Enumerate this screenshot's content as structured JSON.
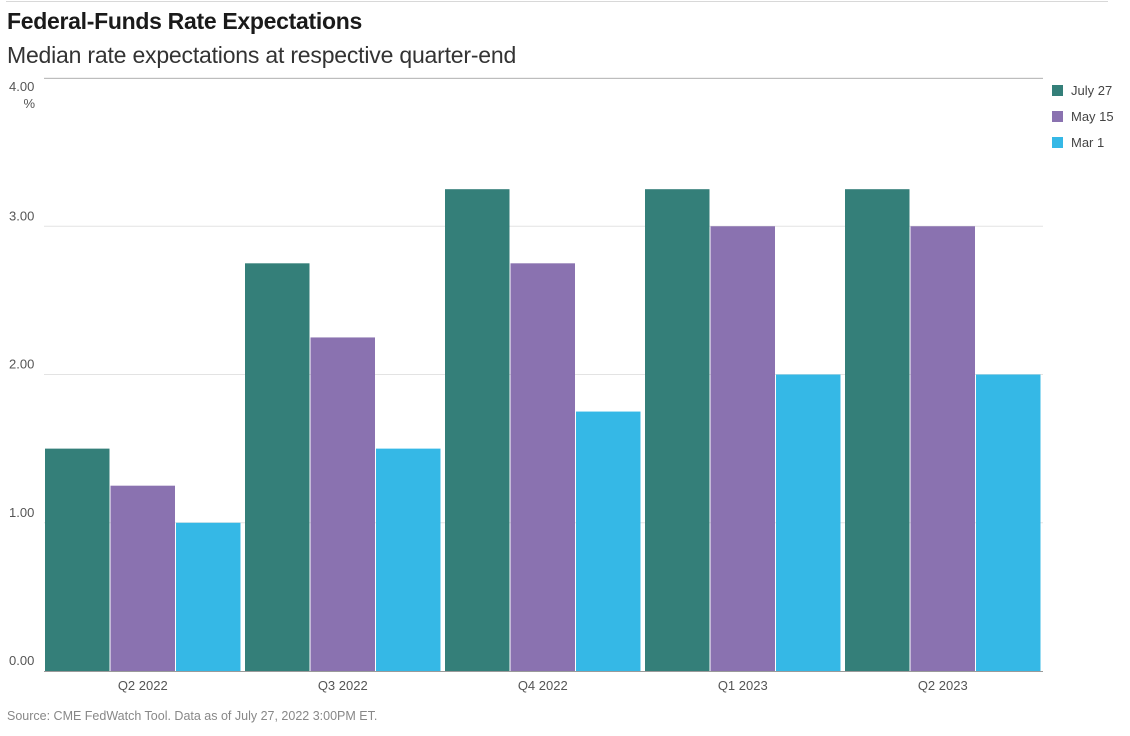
{
  "header": {
    "title": "Federal-Funds Rate Expectations",
    "subtitle": "Median rate expectations at respective quarter-end"
  },
  "footer": {
    "source": "Source: CME FedWatch Tool. Data as of July 27, 2022 3:00PM ET."
  },
  "chart_data": {
    "type": "bar",
    "title": "Federal-Funds Rate Expectations",
    "subtitle": "Median rate expectations at respective quarter-end",
    "unit": "%",
    "categories": [
      "Q2 2022",
      "Q3 2022",
      "Q4 2022",
      "Q1 2023",
      "Q2 2023"
    ],
    "series": [
      {
        "name": "July 27",
        "color": "#347f79",
        "values": [
          1.5,
          2.75,
          3.25,
          3.25,
          3.25
        ]
      },
      {
        "name": "May 15",
        "color": "#8a72b0",
        "values": [
          1.25,
          2.25,
          2.75,
          3.0,
          3.0
        ]
      },
      {
        "name": "Mar 1",
        "color": "#35b8e6",
        "values": [
          1.0,
          1.5,
          1.75,
          2.0,
          2.0
        ]
      }
    ],
    "yticks": [
      {
        "value": 0,
        "label": "0.00"
      },
      {
        "value": 1,
        "label": "1.00"
      },
      {
        "value": 2,
        "label": "2.00"
      },
      {
        "value": 3,
        "label": "3.00"
      },
      {
        "value": 4,
        "label": "4.00"
      }
    ],
    "ylim": [
      0,
      4
    ],
    "grid": true,
    "legend": "top-right"
  }
}
